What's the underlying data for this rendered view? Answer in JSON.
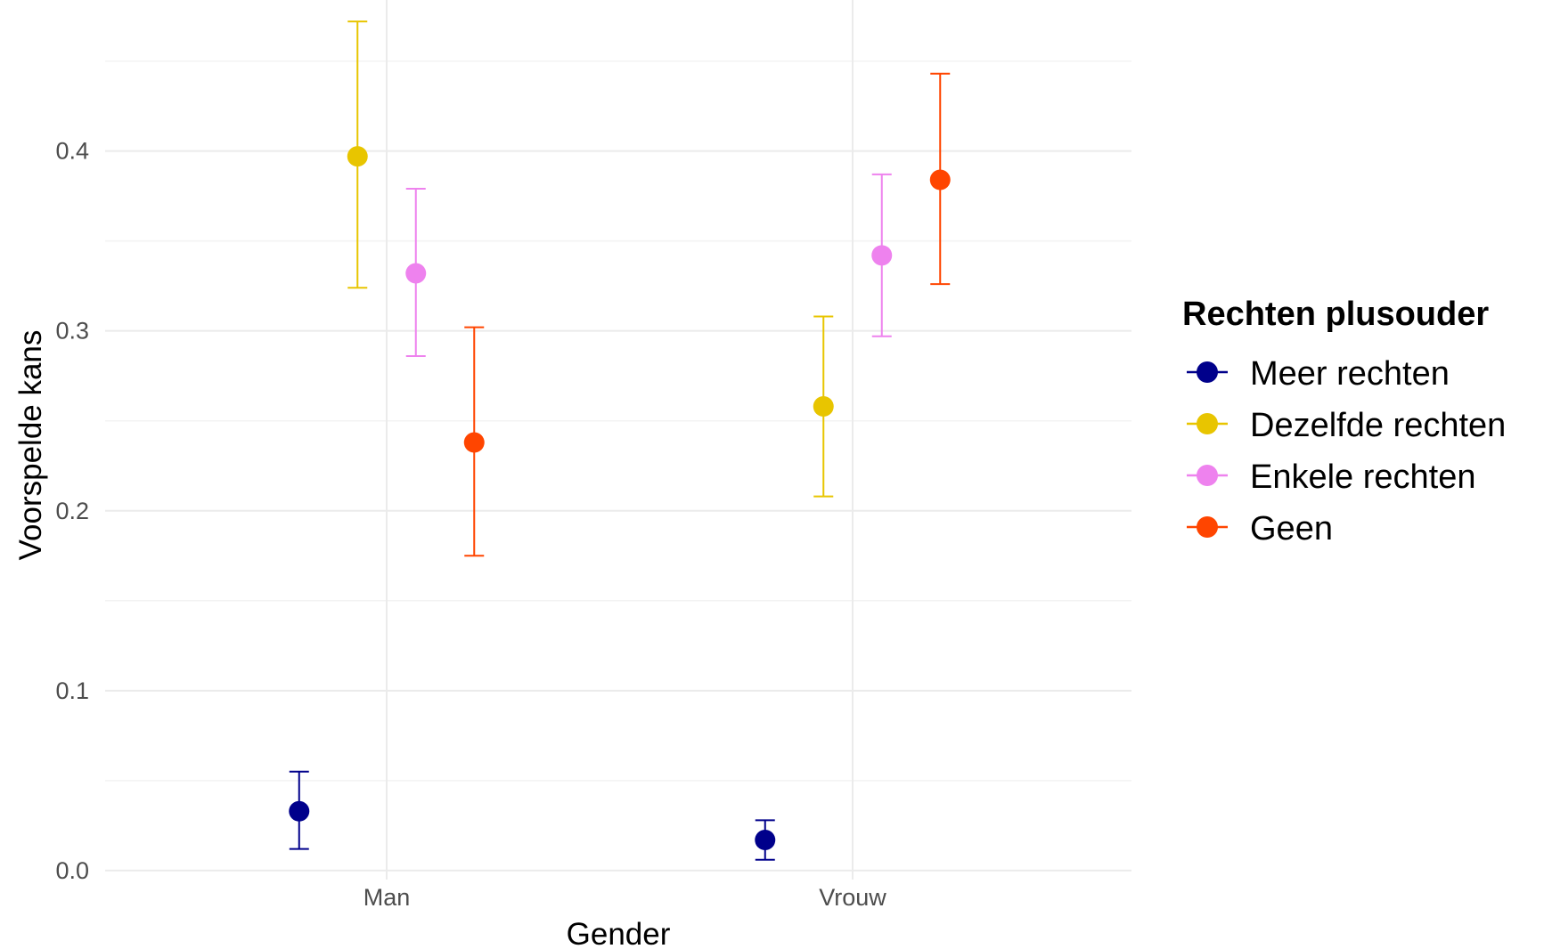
{
  "chart_data": {
    "type": "scatter",
    "subtype": "point-with-error-bars",
    "title": "",
    "xlabel": "Gender",
    "ylabel": "Voorspelde kans",
    "categories": [
      "Man",
      "Vrouw"
    ],
    "ylim": [
      -0.005,
      0.478
    ],
    "yticks": [
      0.0,
      0.1,
      0.2,
      0.3,
      0.4
    ],
    "ytick_labels": [
      "0.0",
      "0.1",
      "0.2",
      "0.3",
      "0.4"
    ],
    "grid": true,
    "legend": {
      "title": "Rechten plusouder",
      "position": "right"
    },
    "series": [
      {
        "name": "Meer rechten",
        "color": "#00008B",
        "values": [
          0.033,
          0.017
        ],
        "lower": [
          0.012,
          0.006
        ],
        "upper": [
          0.055,
          0.028
        ]
      },
      {
        "name": "Dezelfde rechten",
        "color": "#E8C500",
        "values": [
          0.397,
          0.258
        ],
        "lower": [
          0.324,
          0.208
        ],
        "upper": [
          0.472,
          0.308
        ]
      },
      {
        "name": "Enkele rechten",
        "color": "#EE82EE",
        "values": [
          0.332,
          0.342
        ],
        "lower": [
          0.286,
          0.297
        ],
        "upper": [
          0.379,
          0.387
        ]
      },
      {
        "name": "Geen",
        "color": "#FF4500",
        "values": [
          0.238,
          0.384
        ],
        "lower": [
          0.175,
          0.326
        ],
        "upper": [
          0.302,
          0.443
        ]
      }
    ]
  }
}
